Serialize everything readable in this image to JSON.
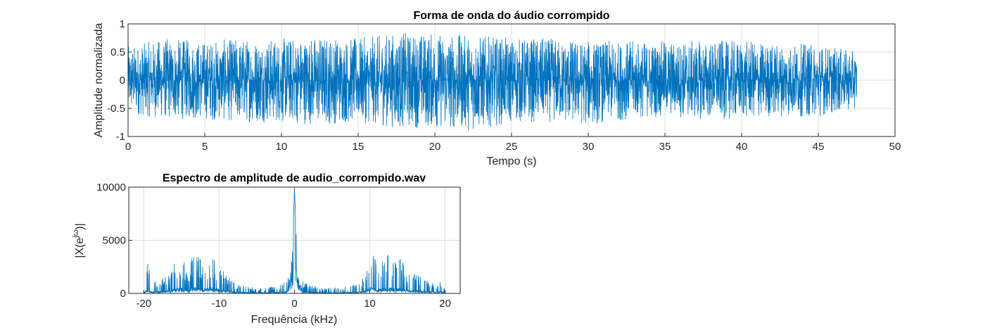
{
  "chart_data": [
    {
      "type": "line",
      "title": "Forma de onda do áudio corrompido",
      "xlabel": "Tempo (s)",
      "ylabel": "Amplitude normalizada",
      "xlim": [
        0,
        50
      ],
      "ylim": [
        -1,
        1
      ],
      "xticks": [
        "0",
        "5",
        "10",
        "15",
        "20",
        "25",
        "30",
        "35",
        "40",
        "45",
        "50"
      ],
      "yticks": [
        "-1",
        "-0.5",
        "0",
        "0.5",
        "1"
      ],
      "grid": true,
      "series": [
        {
          "color": "#0072BD",
          "x": [
            0,
            2.5,
            5,
            7.5,
            10,
            12.5,
            15,
            17.5,
            20,
            22.5,
            25,
            27.5,
            30,
            32.5,
            35,
            37.5,
            40,
            42.5,
            45,
            47.5
          ],
          "envelope_max": [
            0.6,
            0.75,
            0.7,
            0.75,
            0.75,
            0.8,
            0.75,
            0.85,
            0.85,
            0.8,
            0.75,
            0.75,
            0.7,
            0.7,
            0.7,
            0.7,
            0.7,
            0.65,
            0.65,
            0.5
          ],
          "envelope_min": [
            -0.6,
            -0.7,
            -0.7,
            -0.75,
            -0.75,
            -0.8,
            -0.75,
            -0.85,
            -0.85,
            -0.9,
            -0.75,
            -0.75,
            -0.8,
            -0.7,
            -0.65,
            -0.7,
            -0.7,
            -0.65,
            -0.65,
            -0.5
          ]
        }
      ],
      "x_end": 47.5
    },
    {
      "type": "line",
      "title": "Espectro de amplitude de audio_corrompido.wav",
      "xlabel": "Frequência (kHz)",
      "ylabel_main": "|X(e",
      "ylabel_sup": "jω",
      "ylabel_end": ")|",
      "xlim": [
        -22,
        22
      ],
      "ylim": [
        0,
        10000
      ],
      "xticks": [
        "-20",
        "-10",
        "0",
        "10",
        "20"
      ],
      "yticks": [
        "0",
        "5000",
        "10000"
      ],
      "grid": true,
      "series": [
        {
          "color": "#0072BD",
          "x": [
            -20,
            -19.5,
            -19,
            -18,
            -17,
            -16,
            -15,
            -14,
            -13.5,
            -13,
            -12,
            -11,
            -10,
            -9.5,
            -8,
            -6,
            -4,
            -2,
            -1,
            -0.5,
            -0.2,
            0,
            0.2,
            0.5,
            1,
            2,
            4,
            6,
            8,
            9.5,
            10,
            10.5,
            11,
            12,
            12.5,
            13,
            14,
            15,
            16,
            17,
            18,
            19,
            19.5,
            20
          ],
          "y": [
            200,
            2900,
            1300,
            1200,
            1800,
            2800,
            3500,
            2300,
            4200,
            3800,
            3000,
            3600,
            2800,
            2200,
            1000,
            600,
            500,
            800,
            1200,
            2500,
            5500,
            10000,
            6000,
            2200,
            1200,
            800,
            500,
            600,
            800,
            2000,
            4200,
            3500,
            3000,
            3000,
            3900,
            3300,
            3400,
            2200,
            1800,
            1500,
            1200,
            800,
            1300,
            200
          ]
        }
      ]
    }
  ]
}
